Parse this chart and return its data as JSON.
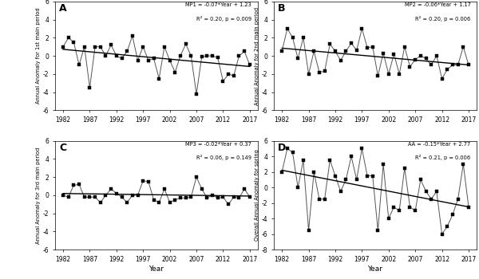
{
  "years": [
    1982,
    1983,
    1984,
    1985,
    1986,
    1987,
    1988,
    1989,
    1990,
    1991,
    1992,
    1993,
    1994,
    1995,
    1996,
    1997,
    1998,
    1999,
    2000,
    2001,
    2002,
    2003,
    2004,
    2005,
    2006,
    2007,
    2008,
    2009,
    2010,
    2011,
    2012,
    2013,
    2014,
    2015,
    2016,
    2017
  ],
  "mp1": [
    1.0,
    2.0,
    1.5,
    -1.0,
    1.0,
    -3.5,
    1.0,
    1.0,
    0.0,
    1.2,
    0.0,
    -0.3,
    0.5,
    2.2,
    -0.5,
    1.0,
    -0.5,
    -0.3,
    -2.5,
    1.0,
    -0.5,
    -1.8,
    0.0,
    1.3,
    0.0,
    -4.2,
    -0.1,
    0.0,
    0.0,
    -0.2,
    -2.8,
    -2.0,
    -2.2,
    0.0,
    0.5,
    -1.0
  ],
  "mp2": [
    0.5,
    3.0,
    2.0,
    -0.3,
    2.0,
    -2.0,
    0.5,
    -1.8,
    -1.7,
    1.3,
    0.5,
    -0.5,
    0.5,
    1.4,
    0.6,
    3.0,
    0.9,
    1.0,
    -2.2,
    0.3,
    -2.0,
    0.2,
    -2.0,
    1.0,
    -1.2,
    -0.4,
    0.0,
    -0.3,
    -1.0,
    0.0,
    -2.5,
    -1.5,
    -1.0,
    -1.0,
    1.0,
    -1.0
  ],
  "mp3": [
    0.0,
    -0.2,
    1.1,
    1.2,
    -0.2,
    -0.2,
    -0.2,
    -0.8,
    0.0,
    0.7,
    0.2,
    -0.2,
    -0.8,
    0.0,
    0.0,
    1.6,
    1.5,
    -0.5,
    -0.8,
    0.7,
    -0.8,
    -0.5,
    -0.3,
    -0.3,
    -0.2,
    2.0,
    0.7,
    -0.3,
    0.0,
    -0.3,
    -0.2,
    -1.0,
    -0.2,
    -0.3,
    0.7,
    -0.2
  ],
  "aa": [
    2.0,
    5.0,
    4.5,
    0.0,
    3.5,
    -5.5,
    2.0,
    -1.5,
    -1.5,
    3.5,
    1.5,
    -0.5,
    1.0,
    4.0,
    1.0,
    5.0,
    1.5,
    1.5,
    -5.5,
    3.0,
    -4.0,
    -2.5,
    -3.0,
    2.5,
    -2.5,
    -3.0,
    1.0,
    -0.5,
    -1.5,
    -0.5,
    -6.0,
    -5.0,
    -3.5,
    -1.5,
    3.0,
    -2.5
  ],
  "mp1_eq": "MP1 = -0.07*Year + 1.23",
  "mp1_r2": "R² = 0.20, p = 0.009",
  "mp2_eq": "MP2 = -0.06*Year + 1.17",
  "mp2_r2": "R² = 0.20, p = 0.006",
  "mp3_eq": "MP3 = -0.02*Year + 0.37",
  "mp3_r2": "R² = 0.06, p = 0.149",
  "aa_eq": "AA = -0.15*Year + 2.77",
  "aa_r2": "R² = 0.21, p = 0.006",
  "ylim": [
    -6,
    6
  ],
  "aa_ylim": [
    -8,
    6
  ],
  "xticks": [
    1982,
    1987,
    1992,
    1997,
    2002,
    2007,
    2012,
    2017
  ],
  "panel_labels": [
    "A",
    "B",
    "C",
    "D"
  ],
  "ylabel_mp1": "Annual Anomaly for 1st main period",
  "ylabel_mp2": "Annual Anomaly for 2nd main period",
  "ylabel_mp3": "Annual Anomaly for 3rd main period",
  "ylabel_aa": "Overall Annual Anomaly for spring",
  "xlabel": "Year",
  "line_color": "#555555",
  "trend_color": "#000000",
  "marker_color": "black",
  "bg_color": "#ffffff"
}
